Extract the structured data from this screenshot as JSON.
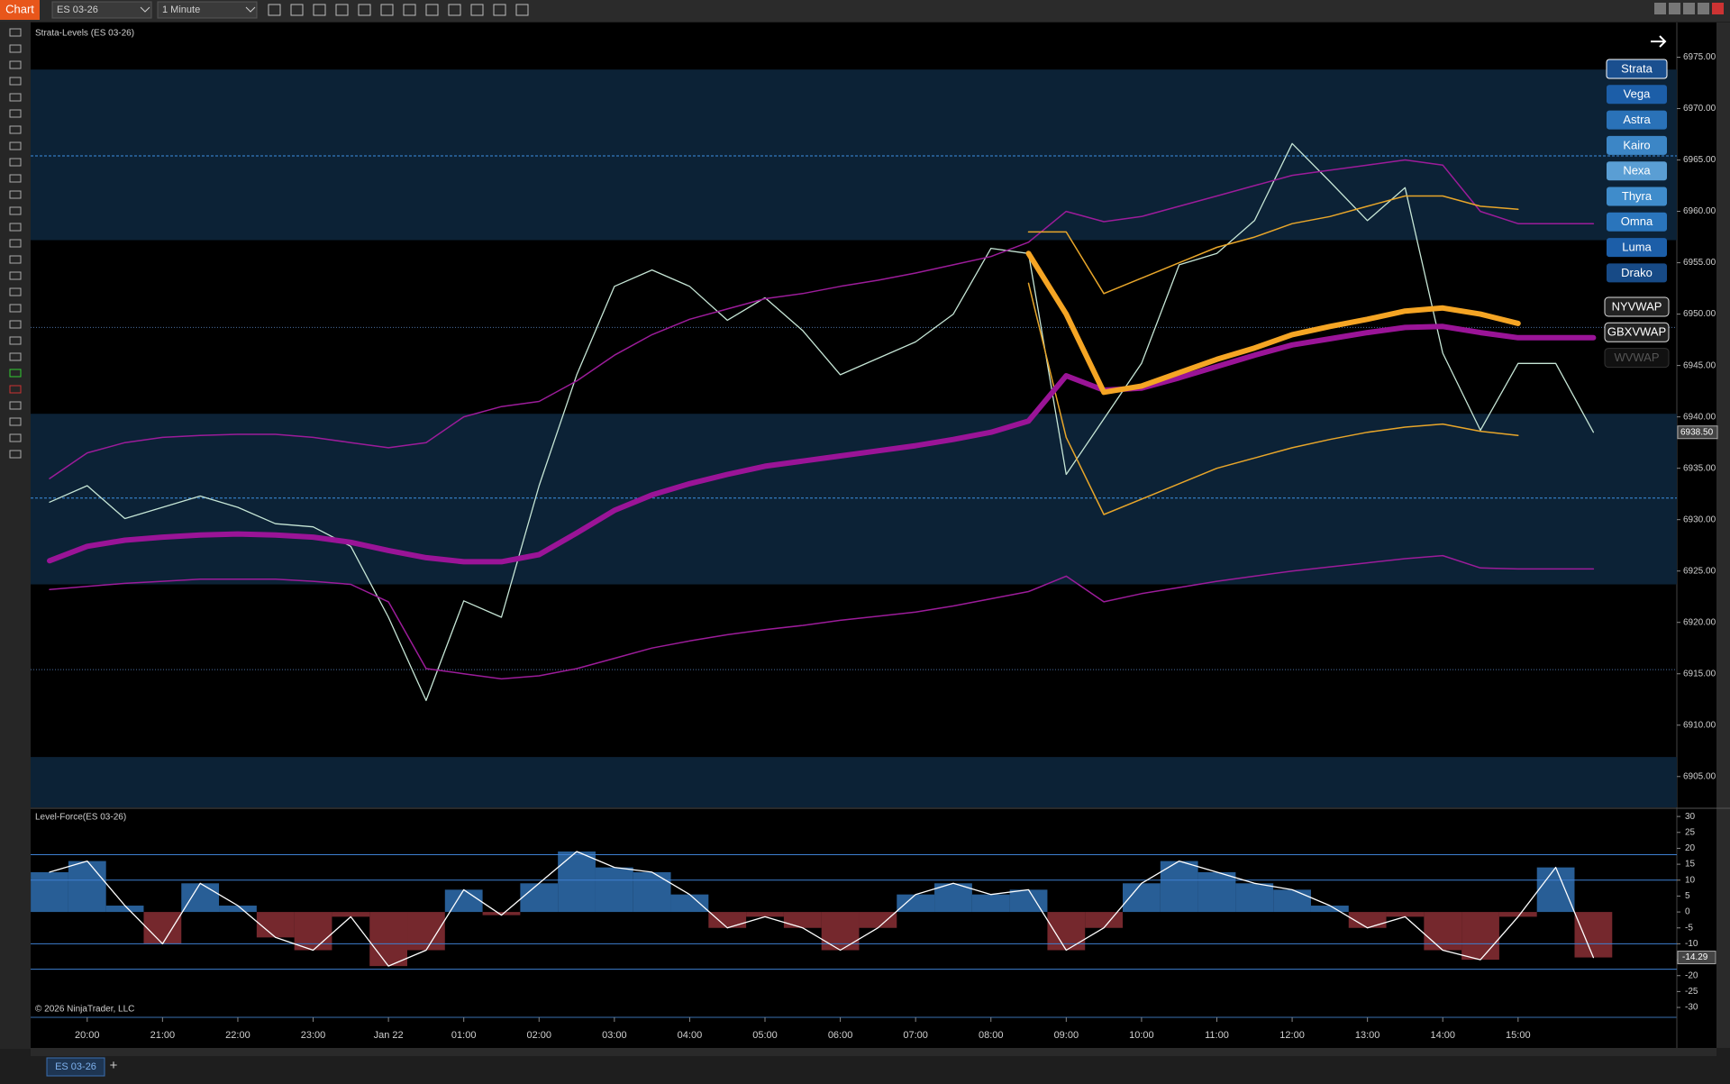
{
  "toolbar": {
    "app": "Chart",
    "instrument": "ES 03-26",
    "interval": "1 Minute"
  },
  "chart_data": [
    {
      "type": "line",
      "title": "Strata-Levels (ES 03-26)",
      "categories": [
        null,
        "20:00",
        null,
        "21:00",
        null,
        "22:00",
        null,
        "23:00",
        null,
        "Jan 22",
        null,
        "01:00",
        null,
        "02:00",
        null,
        "03:00",
        null,
        "04:00",
        null,
        "05:00",
        null,
        "06:00",
        null,
        "07:00",
        null,
        "08:00",
        null,
        "09:00",
        null,
        "10:00",
        null,
        "11:00",
        null,
        "12:00",
        null,
        "13:00",
        null,
        "14:00",
        null,
        "15:00",
        null,
        null
      ],
      "ylim": [
        6902,
        6978.2
      ],
      "yticks": [
        {
          "value": 6905,
          "label": "6905.00"
        },
        {
          "value": 6910,
          "label": "6910.00"
        },
        {
          "value": 6915,
          "label": "6915.00"
        },
        {
          "value": 6920,
          "label": "6920.00"
        },
        {
          "value": 6925,
          "label": "6925.00"
        },
        {
          "value": 6930,
          "label": "6930.00"
        },
        {
          "value": 6935,
          "label": "6935.00"
        },
        {
          "value": 6940,
          "label": "6940.00"
        },
        {
          "value": 6945,
          "label": "6945.00"
        },
        {
          "value": 6950,
          "label": "6950.00"
        },
        {
          "value": 6955,
          "label": "6955.00"
        },
        {
          "value": 6960,
          "label": "6960.00"
        },
        {
          "value": 6965,
          "label": "6965.00"
        },
        {
          "value": 6970,
          "label": "6970.00"
        },
        {
          "value": 6975,
          "label": "6975.00"
        }
      ],
      "zones": [
        [
          6957.2,
          6973.8
        ],
        [
          6923.7,
          6940.3
        ],
        [
          6902,
          6906.9
        ]
      ],
      "zone_color": "#0c2236",
      "levels": [
        6965.4,
        6948.7,
        6932.1,
        6915.4
      ],
      "series": [
        {
          "color": "#c6e6d6",
          "width": 1.3,
          "values": [
            6931.7,
            6933.3,
            6930.1,
            6931.2,
            6932.3,
            6931.2,
            6929.6,
            6929.3,
            6927.4,
            6920.5,
            6912.4,
            6922.1,
            6920.5,
            6933.3,
            6944.1,
            6952.7,
            6954.3,
            6952.7,
            6949.4,
            6951.6,
            6948.4,
            6944.1,
            6945.7,
            6947.3,
            6950.0,
            6956.4,
            6955.9,
            6934.4,
            6939.8,
            6945.2,
            6954.8,
            6955.9,
            6959.1,
            6966.6,
            6962.9,
            6959.1,
            6962.3,
            6946.2,
            6938.7,
            6945.2,
            6945.2,
            6938.5
          ]
        },
        {
          "color": "#9c1c9a",
          "width": 1.5,
          "values": [
            6934,
            6936.5,
            6937.5,
            6938,
            6938.2,
            6938.3,
            6938.3,
            6938,
            6937.5,
            6937,
            6937.5,
            6940,
            6941,
            6941.5,
            6943.5,
            6946,
            6948,
            6949.5,
            6950.5,
            6951.5,
            6952,
            6952.7,
            6953.3,
            6954,
            6954.8,
            6955.6,
            6957,
            6960,
            6959,
            6959.5,
            6960.5,
            6961.5,
            6962.5,
            6963.5,
            6964,
            6964.5,
            6965,
            6964.5,
            6960,
            6958.8,
            6958.8,
            6958.8
          ]
        },
        {
          "color": "#9c1c9a",
          "width": 1.5,
          "values": [
            6923.2,
            6923.5,
            6923.8,
            6924,
            6924.2,
            6924.2,
            6924.2,
            6924,
            6923.7,
            6922,
            6915.5,
            6915,
            6914.5,
            6914.8,
            6915.5,
            6916.5,
            6917.5,
            6918.2,
            6918.8,
            6919.3,
            6919.7,
            6920.2,
            6920.6,
            6921,
            6921.6,
            6922.3,
            6923,
            6924.5,
            6922,
            6922.8,
            6923.4,
            6924,
            6924.5,
            6925,
            6925.4,
            6925.8,
            6926.2,
            6926.5,
            6925.3,
            6925.2,
            6925.2,
            6925.2
          ]
        },
        {
          "color": "#e8a62a",
          "width": 1.5,
          "values": [
            null,
            null,
            null,
            null,
            null,
            null,
            null,
            null,
            null,
            null,
            null,
            null,
            null,
            null,
            null,
            null,
            null,
            null,
            null,
            null,
            null,
            null,
            null,
            null,
            null,
            null,
            6958,
            6958,
            6952,
            6953.5,
            6955,
            6956.5,
            6957.5,
            6958.8,
            6959.5,
            6960.5,
            6961.5,
            6961.5,
            6960.5,
            6960.2,
            null,
            null
          ]
        },
        {
          "color": "#e8a62a",
          "width": 1.5,
          "values": [
            null,
            null,
            null,
            null,
            null,
            null,
            null,
            null,
            null,
            null,
            null,
            null,
            null,
            null,
            null,
            null,
            null,
            null,
            null,
            null,
            null,
            null,
            null,
            null,
            null,
            null,
            6953,
            6938,
            6930.5,
            6932,
            6933.5,
            6935,
            6936,
            6937,
            6937.8,
            6938.5,
            6939,
            6939.3,
            6938.6,
            6938.2,
            null,
            null
          ]
        },
        {
          "name": "NYVWAP",
          "color": "#9a1497",
          "width": 6,
          "values": [
            6926.0,
            6927.4,
            6928.0,
            6928.3,
            6928.5,
            6928.6,
            6928.5,
            6928.3,
            6927.8,
            6927.0,
            6926.3,
            6925.9,
            6925.9,
            6926.6,
            6928.7,
            6930.9,
            6932.4,
            6933.5,
            6934.4,
            6935.2,
            6935.7,
            6936.2,
            6936.7,
            6937.2,
            6937.8,
            6938.5,
            6939.6,
            6944,
            6942.6,
            6942.8,
            6943.8,
            6944.9,
            6946.0,
            6947.0,
            6947.6,
            6948.2,
            6948.7,
            6948.8,
            6948.2,
            6947.7,
            6947.7,
            6947.7
          ]
        },
        {
          "name": "GBXVWAP",
          "color": "#f5a524",
          "width": 6,
          "values": [
            null,
            null,
            null,
            null,
            null,
            null,
            null,
            null,
            null,
            null,
            null,
            null,
            null,
            null,
            null,
            null,
            null,
            null,
            null,
            null,
            null,
            null,
            null,
            null,
            null,
            null,
            6955.9,
            6950,
            6942.4,
            6943.0,
            6944.3,
            6945.6,
            6946.7,
            6948.0,
            6948.8,
            6949.5,
            6950.3,
            6950.6,
            6950.0,
            6949.1,
            null,
            null
          ]
        }
      ],
      "last_label": {
        "value": 6938.5,
        "label": "6938.50"
      },
      "buttons": [
        "Strata",
        "Vega",
        "Astra",
        "Kairo",
        "Nexa",
        "Thyra",
        "Omna",
        "Luma",
        "Drako"
      ],
      "inactive_toggles": [
        "WVWAP"
      ]
    },
    {
      "type": "bar",
      "title": "Level-Force(ES 03-26)",
      "ylim": [
        -33.1,
        32.3
      ],
      "yticks": [
        30,
        25,
        20,
        15,
        10,
        5,
        0,
        -5,
        -10,
        -15,
        -20,
        -25,
        -30
      ],
      "levels": [
        18,
        10,
        -10,
        -18
      ],
      "positive_color": "#2f6fb0",
      "negative_color": "#8a2f35",
      "line_color": "#ffffff",
      "values": [
        12.5,
        16,
        2,
        -10,
        9,
        2,
        -8,
        -12,
        -1.5,
        -17,
        -12,
        7,
        -1,
        9,
        19,
        14,
        12.5,
        5.5,
        -5,
        -1.5,
        -5,
        -12,
        -5,
        5.5,
        9,
        5.5,
        7,
        -12,
        -5,
        9,
        16,
        12.5,
        9,
        7,
        2,
        -5,
        -1.5,
        -12,
        -15,
        -1.5,
        14,
        -14.29
      ],
      "footnote": "© 2026 NinjaTrader, LLC"
    }
  ],
  "tab": "ES 03-26"
}
